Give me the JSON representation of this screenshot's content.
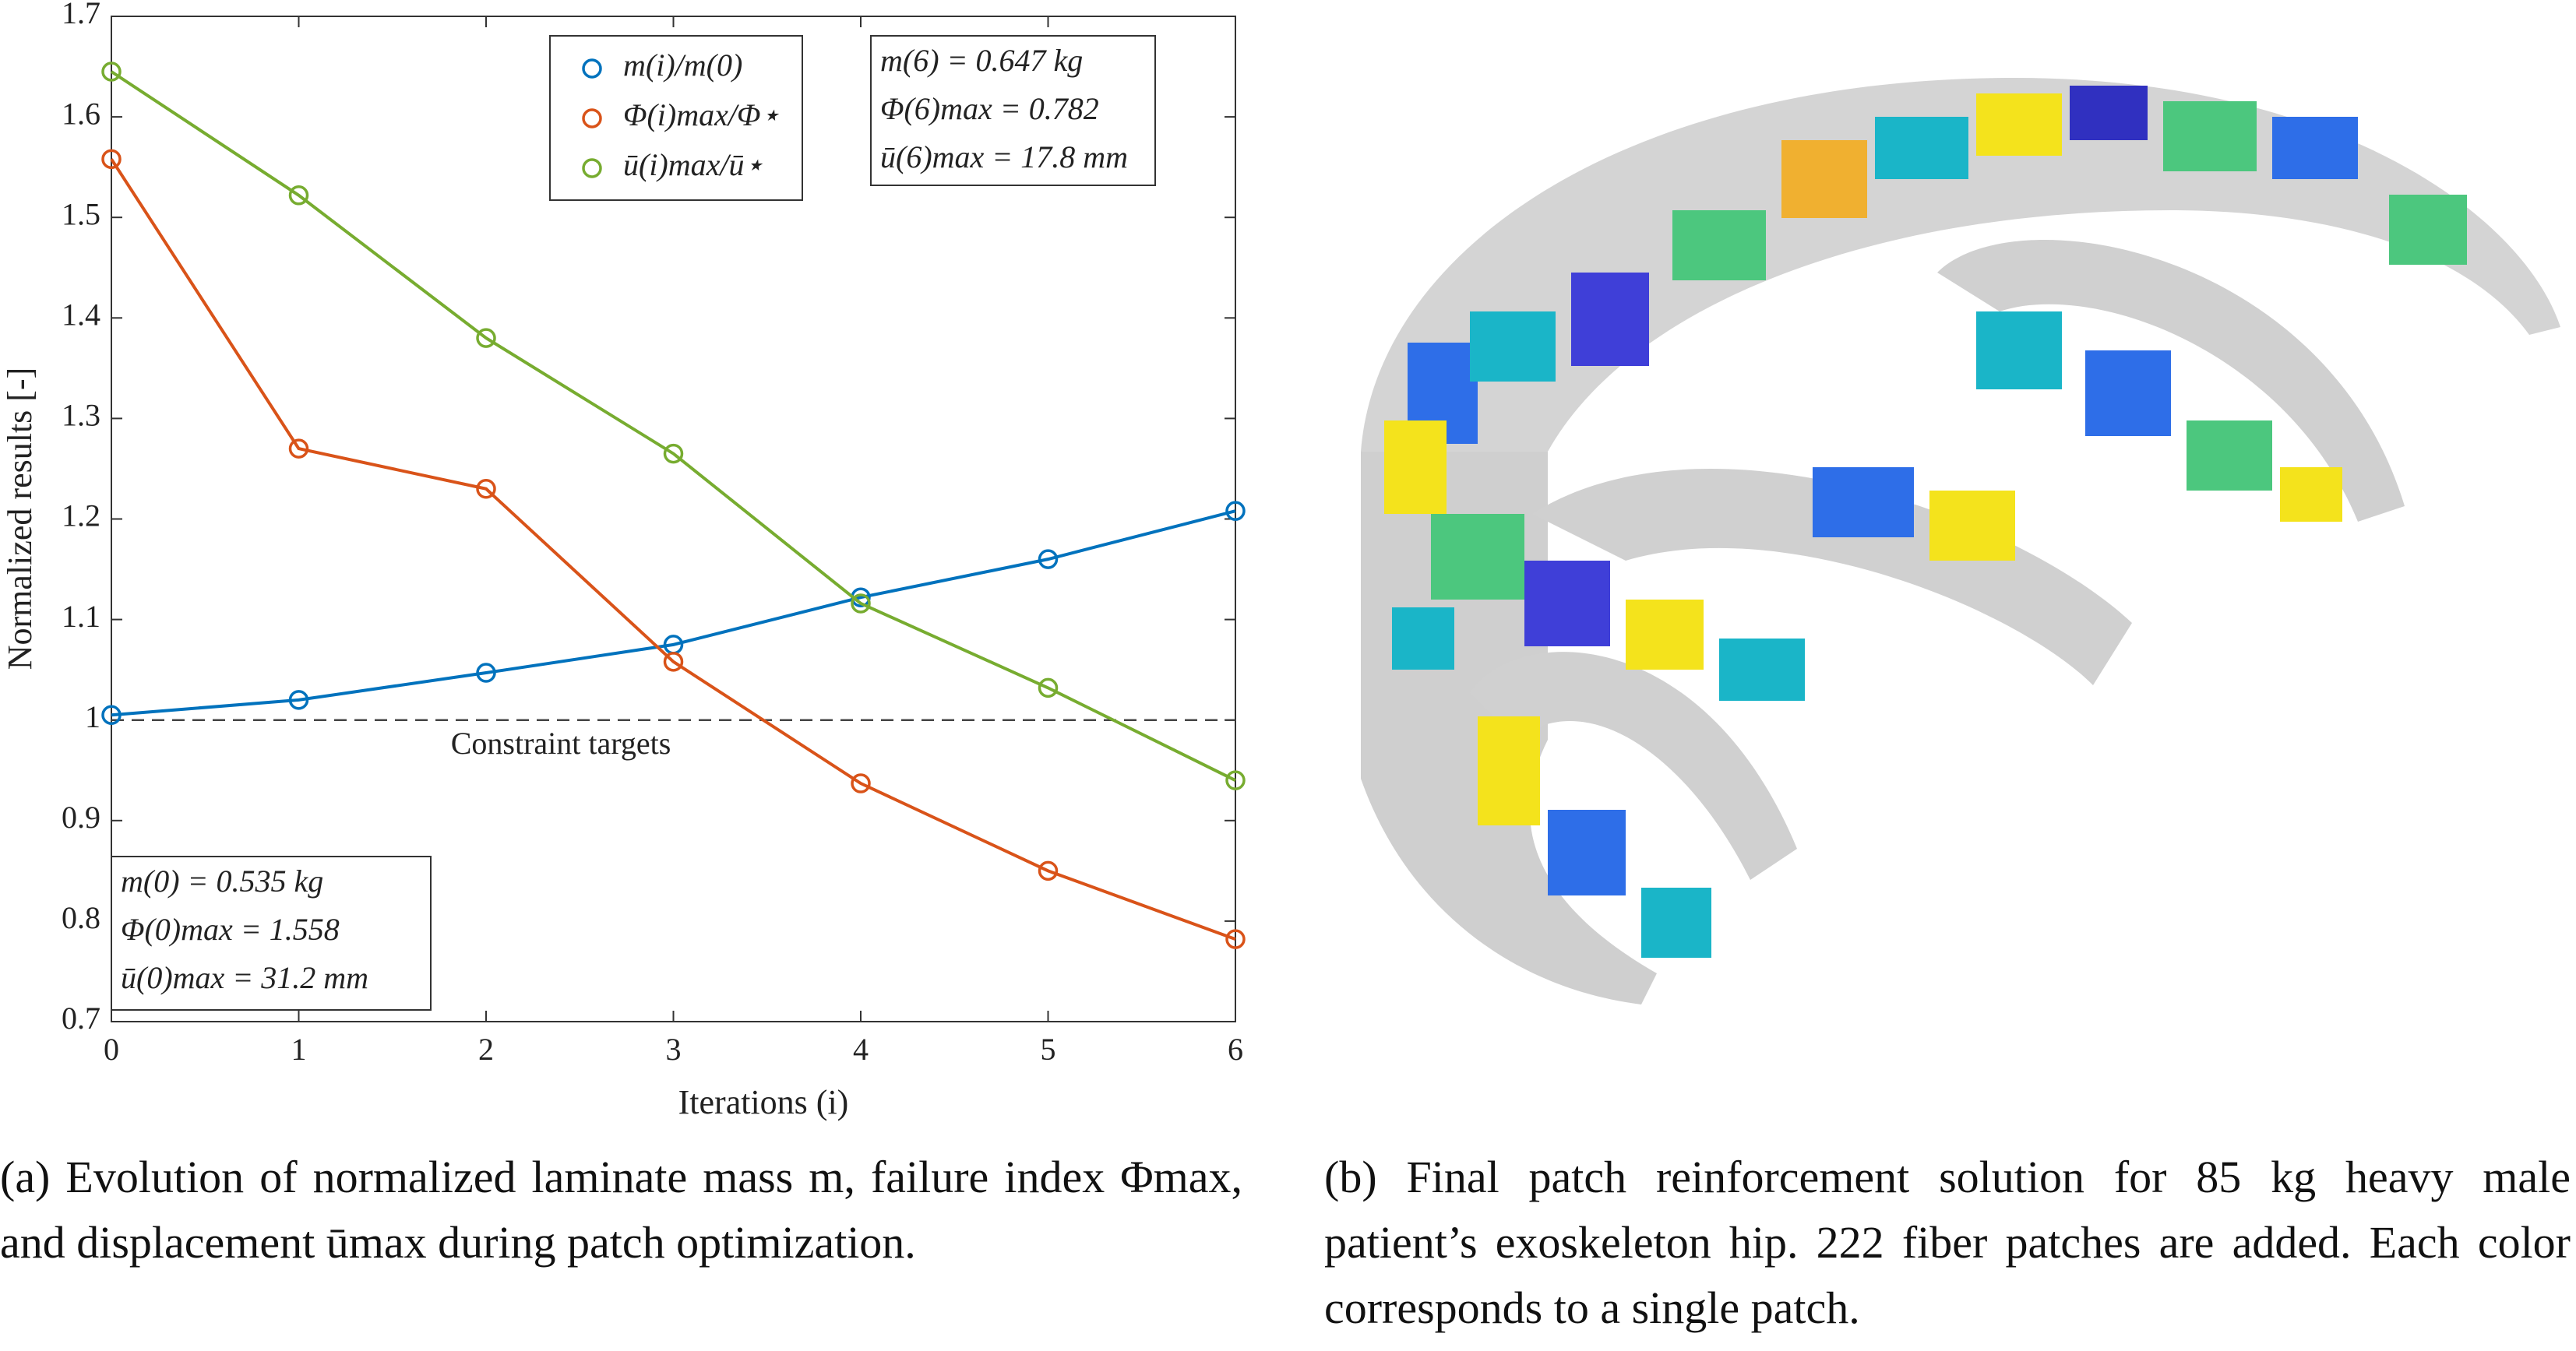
{
  "chart_data": {
    "type": "line",
    "x": [
      0,
      1,
      2,
      3,
      4,
      5,
      6
    ],
    "series": [
      {
        "name": "m(i)/m(0)",
        "color": "#0072bd",
        "values": [
          1.005,
          1.02,
          1.047,
          1.075,
          1.122,
          1.16,
          1.208
        ]
      },
      {
        "name": "Φ(i)max/Φ⋆",
        "color": "#d95319",
        "values": [
          1.558,
          1.27,
          1.23,
          1.058,
          0.937,
          0.85,
          0.782
        ]
      },
      {
        "name": "ū(i)max/ū⋆",
        "color": "#77ac30",
        "values": [
          1.645,
          1.522,
          1.38,
          1.265,
          1.116,
          1.032,
          0.94
        ]
      }
    ],
    "xlim": [
      0,
      6
    ],
    "xticks": [
      0,
      1,
      2,
      3,
      4,
      5,
      6
    ],
    "ylim": [
      0.7,
      1.7
    ],
    "yticks": [
      0.7,
      0.8,
      0.9,
      1,
      1.1,
      1.2,
      1.3,
      1.4,
      1.5,
      1.6,
      1.7
    ],
    "x_label": "Iterations (i)",
    "y_label": "Normalized results [-]",
    "reference_line": {
      "value": 1,
      "label": "Constraint targets"
    },
    "annotations_final": [
      "m(6) = 0.647 kg",
      "Φ(6)max = 0.782",
      "ū(6)max = 17.8 mm"
    ],
    "annotations_initial": [
      "m(0) = 0.535 kg",
      "Φ(0)max = 1.558",
      "ū(0)max = 31.2 mm"
    ],
    "legend": "upper center"
  },
  "captions": [
    "(a) Evolution of normalized laminate mass m, failure index Φmax, and displacement ūmax during patch optimization.",
    "(b) Final patch reinforcement solution for 85 kg heavy male patient’s exoskeleton hip. 222 fiber patches are added. Each color corresponds to a single patch."
  ]
}
